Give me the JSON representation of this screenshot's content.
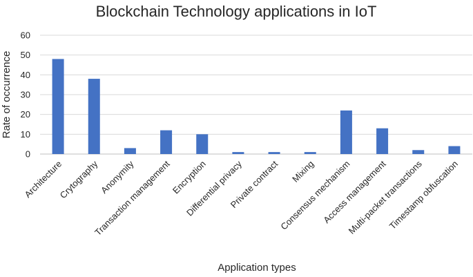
{
  "chart_data": {
    "type": "bar",
    "title": "Blockchain Technology applications in IoT",
    "xlabel": "Application types",
    "ylabel": "Rate of occurrence",
    "ylim": [
      0,
      60
    ],
    "yticks": [
      0,
      10,
      20,
      30,
      40,
      50,
      60
    ],
    "grid": true,
    "legend": "none",
    "bar_color": "#4472C4",
    "categories": [
      "Architecture",
      "Crytography",
      "Anonymity",
      "Transaction management",
      "Encryption",
      "Differential privacy",
      "Private contract",
      "Mixing",
      "Consensus mechanism",
      "Access management",
      "Multi-packet transactions",
      "Timestamp obfuscation"
    ],
    "values": [
      48,
      38,
      3,
      12,
      10,
      1,
      1,
      1,
      22,
      13,
      2,
      4
    ]
  }
}
